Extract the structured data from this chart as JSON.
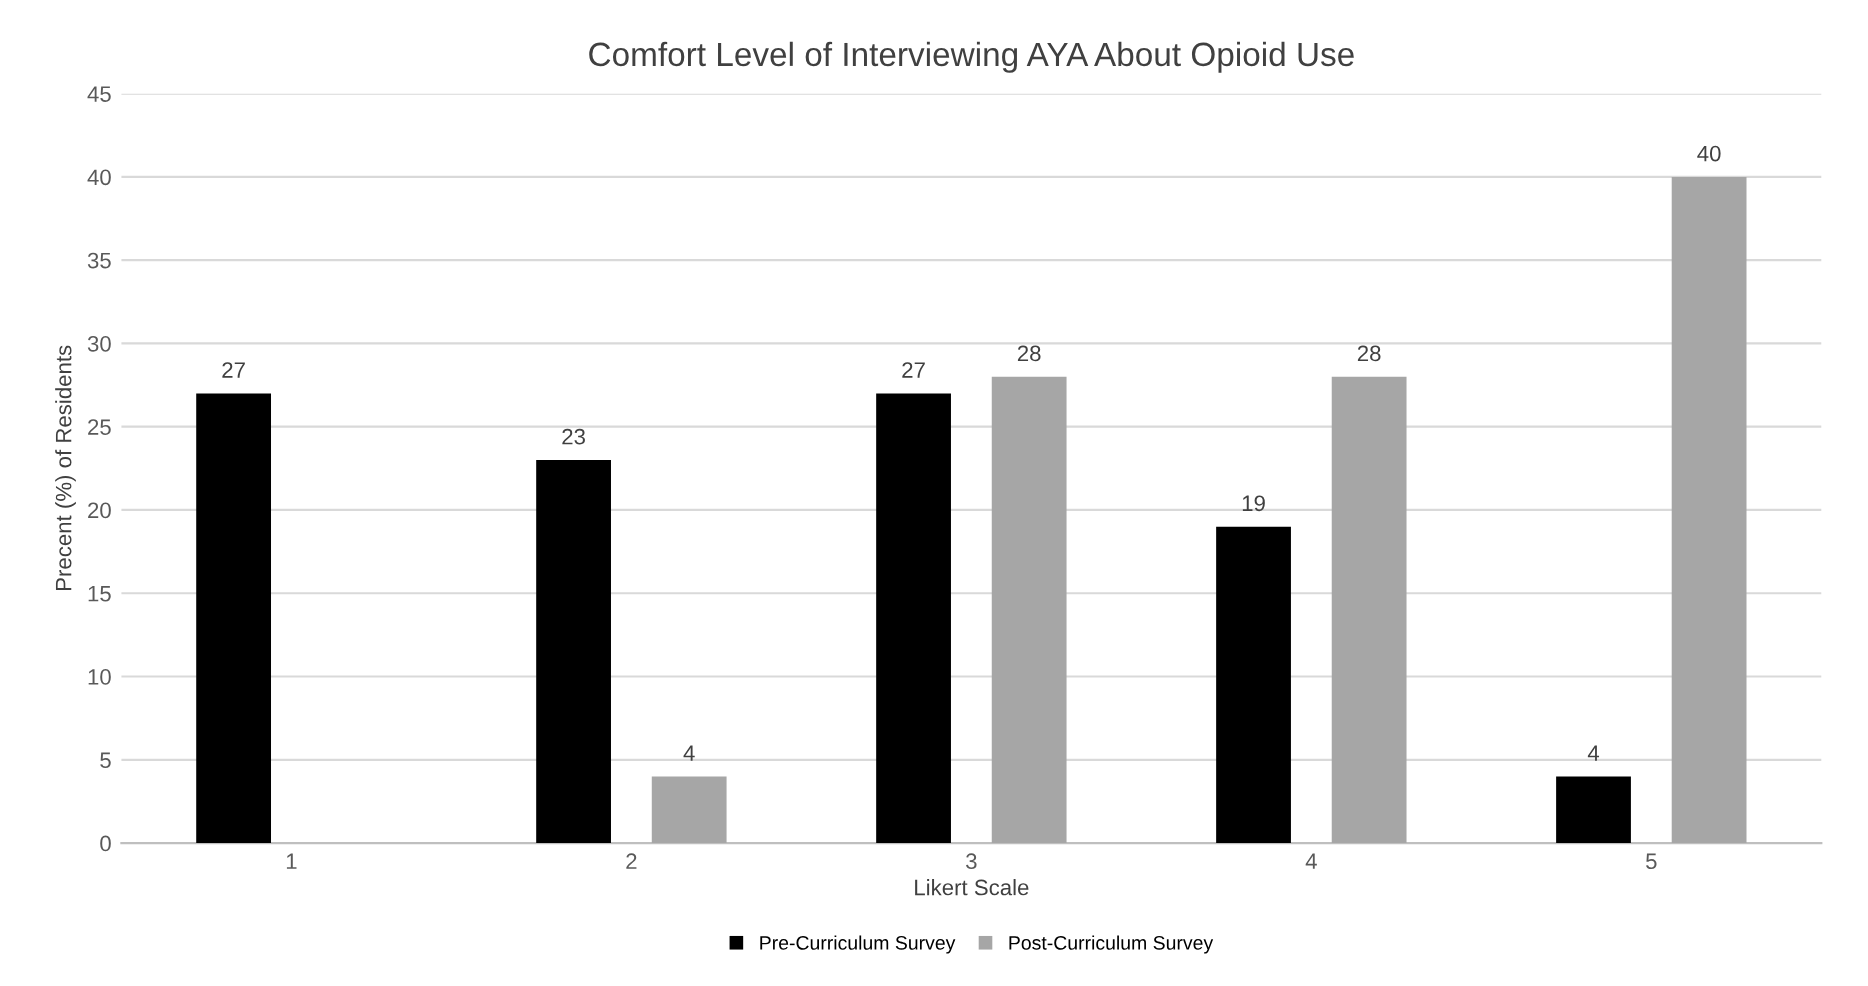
{
  "chart_data": {
    "type": "bar",
    "title": "Comfort Level of Interviewing AYA About Opioid Use",
    "xlabel": "Likert Scale",
    "ylabel": "Precent (%) of Residents",
    "categories": [
      "1",
      "2",
      "3",
      "4",
      "5"
    ],
    "series": [
      {
        "name": "Pre-Curriculum Survey",
        "color": "#000000",
        "values": [
          27,
          23,
          27,
          19,
          4
        ]
      },
      {
        "name": "Post-Curriculum Survey",
        "color": "#a6a6a6",
        "values": [
          null,
          4,
          28,
          28,
          40
        ]
      }
    ],
    "ylim": [
      0,
      45
    ],
    "yticks": [
      0,
      5,
      10,
      15,
      20,
      25,
      30,
      35,
      40,
      45
    ],
    "grid": "y",
    "legend": "bottom",
    "data_labels": true
  }
}
